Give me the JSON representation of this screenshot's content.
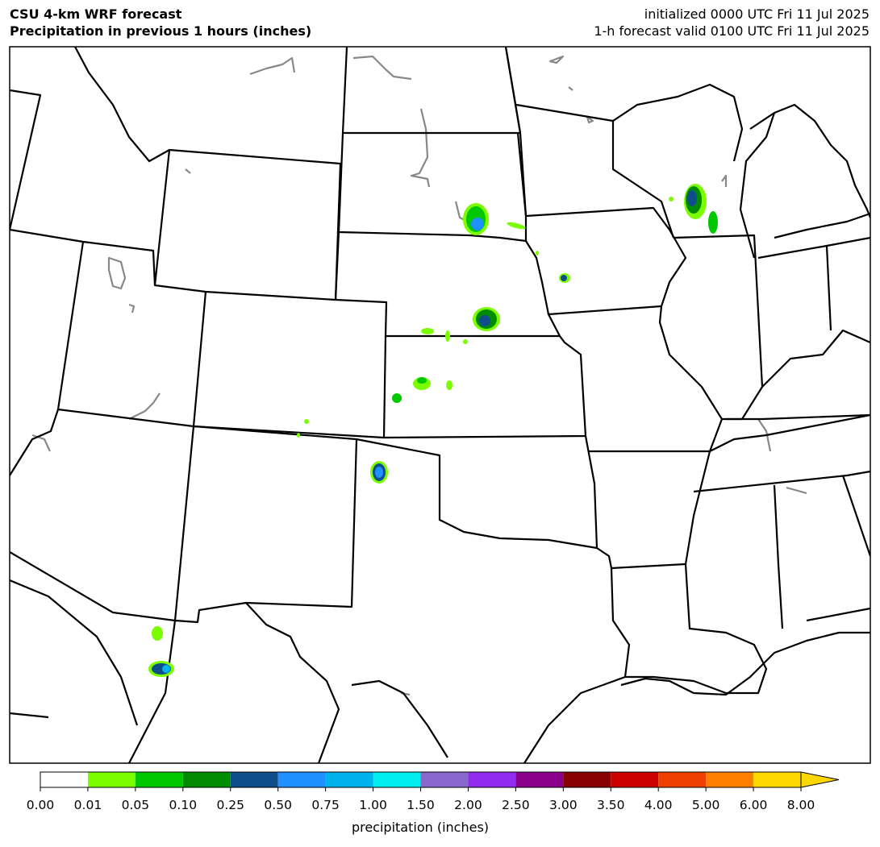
{
  "header": {
    "left": [
      "CSU 4-km WRF forecast",
      "Precipitation in previous 1 hours (inches)"
    ],
    "right": [
      "initialized 0000 UTC Fri 11 Jul 2025",
      "1-h forecast valid 0100 UTC Fri 11 Jul 2025"
    ]
  },
  "colorbar": {
    "label": "precipitation (inches)",
    "ticks": [
      {
        "value": 0,
        "label": "0.00"
      },
      {
        "value": 0.01,
        "label": "0.01"
      },
      {
        "value": 0.05,
        "label": "0.05"
      },
      {
        "value": 0.1,
        "label": "0.10"
      },
      {
        "value": 0.25,
        "label": "0.25"
      },
      {
        "value": 0.5,
        "label": "0.50"
      },
      {
        "value": 0.75,
        "label": "0.75"
      },
      {
        "value": 1,
        "label": "1.00"
      },
      {
        "value": 1.5,
        "label": "1.50"
      },
      {
        "value": 2,
        "label": "2.00"
      },
      {
        "value": 2.5,
        "label": "2.50"
      },
      {
        "value": 3,
        "label": "3.00"
      },
      {
        "value": 3.5,
        "label": "3.50"
      },
      {
        "value": 4,
        "label": "4.00"
      },
      {
        "value": 5,
        "label": "5.00"
      },
      {
        "value": 6,
        "label": "6.00"
      },
      {
        "value": 8,
        "label": "8.00"
      }
    ],
    "colors": [
      "#ffffff",
      "#7cfc00",
      "#00c800",
      "#008b00",
      "#104e8b",
      "#1e90ff",
      "#00b2ee",
      "#00eeee",
      "#8968cd",
      "#912cee",
      "#8b008b",
      "#8b0000",
      "#cd0000",
      "#ee4000",
      "#ff7f00",
      "#ffd700"
    ],
    "extend": "max"
  }
}
